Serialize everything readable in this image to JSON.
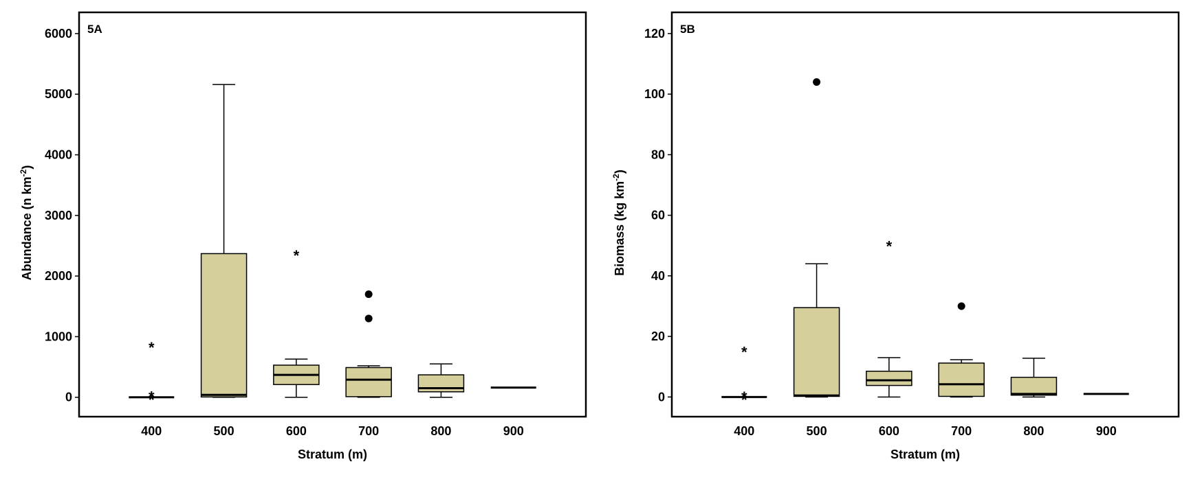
{
  "chart_data": [
    {
      "type": "box",
      "panel_label": "5A",
      "xlabel": "Stratum (m)",
      "ylabel": "Abundance (n km",
      "ylabel_sup": "-2",
      "ylabel_close": ")",
      "ylim": [
        -320,
        6350
      ],
      "yticks": [
        0,
        1000,
        2000,
        3000,
        4000,
        5000,
        6000
      ],
      "categories": [
        "400",
        "500",
        "600",
        "700",
        "800",
        "900"
      ],
      "box_color": "#d4cf9b",
      "boxes": [
        {
          "category": "400",
          "whisker_low": 0,
          "q1": 0,
          "median": 0,
          "q3": 0,
          "whisker_high": 0,
          "outliers": [],
          "extremes": [
            880,
            70,
            20
          ]
        },
        {
          "category": "500",
          "whisker_low": 0,
          "q1": 5,
          "median": 40,
          "q3": 2370,
          "whisker_high": 5160,
          "outliers": [],
          "extremes": []
        },
        {
          "category": "600",
          "whisker_low": 0,
          "q1": 210,
          "median": 370,
          "q3": 530,
          "whisker_high": 630,
          "outliers": [],
          "extremes": [
            2400
          ]
        },
        {
          "category": "700",
          "whisker_low": 0,
          "q1": 10,
          "median": 290,
          "q3": 490,
          "whisker_high": 520,
          "outliers": [
            1700,
            1300
          ],
          "extremes": []
        },
        {
          "category": "800",
          "whisker_low": 0,
          "q1": 90,
          "median": 150,
          "q3": 370,
          "whisker_high": 550,
          "outliers": [],
          "extremes": []
        },
        {
          "category": "900",
          "whisker_low": 160,
          "q1": 160,
          "median": 160,
          "q3": 160,
          "whisker_high": 160,
          "outliers": [],
          "extremes": []
        }
      ]
    },
    {
      "type": "box",
      "panel_label": "5B",
      "xlabel": "Stratum (m)",
      "ylabel": "Biomass (kg km",
      "ylabel_sup": "-2",
      "ylabel_close": ")",
      "ylim": [
        -6.5,
        127
      ],
      "yticks": [
        0,
        20,
        40,
        60,
        80,
        100,
        120
      ],
      "categories": [
        "400",
        "500",
        "600",
        "700",
        "800",
        "900"
      ],
      "box_color": "#d4cf9b",
      "boxes": [
        {
          "category": "400",
          "whisker_low": 0,
          "q1": 0,
          "median": 0,
          "q3": 0,
          "whisker_high": 0,
          "outliers": [],
          "extremes": [
            16,
            1.2,
            0.3
          ]
        },
        {
          "category": "500",
          "whisker_low": 0,
          "q1": 0.2,
          "median": 0.5,
          "q3": 29.5,
          "whisker_high": 44,
          "outliers": [
            104
          ],
          "extremes": []
        },
        {
          "category": "600",
          "whisker_low": 0,
          "q1": 3.8,
          "median": 5.5,
          "q3": 8.5,
          "whisker_high": 13,
          "outliers": [],
          "extremes": [
            51
          ]
        },
        {
          "category": "700",
          "whisker_low": 0,
          "q1": 0.2,
          "median": 4.2,
          "q3": 11.2,
          "whisker_high": 12.3,
          "outliers": [
            30
          ],
          "extremes": []
        },
        {
          "category": "800",
          "whisker_low": 0,
          "q1": 0.6,
          "median": 1,
          "q3": 6.5,
          "whisker_high": 12.8,
          "outliers": [],
          "extremes": []
        },
        {
          "category": "900",
          "whisker_low": 1,
          "q1": 1,
          "median": 1,
          "q3": 1,
          "whisker_high": 1,
          "outliers": [],
          "extremes": []
        }
      ]
    }
  ]
}
